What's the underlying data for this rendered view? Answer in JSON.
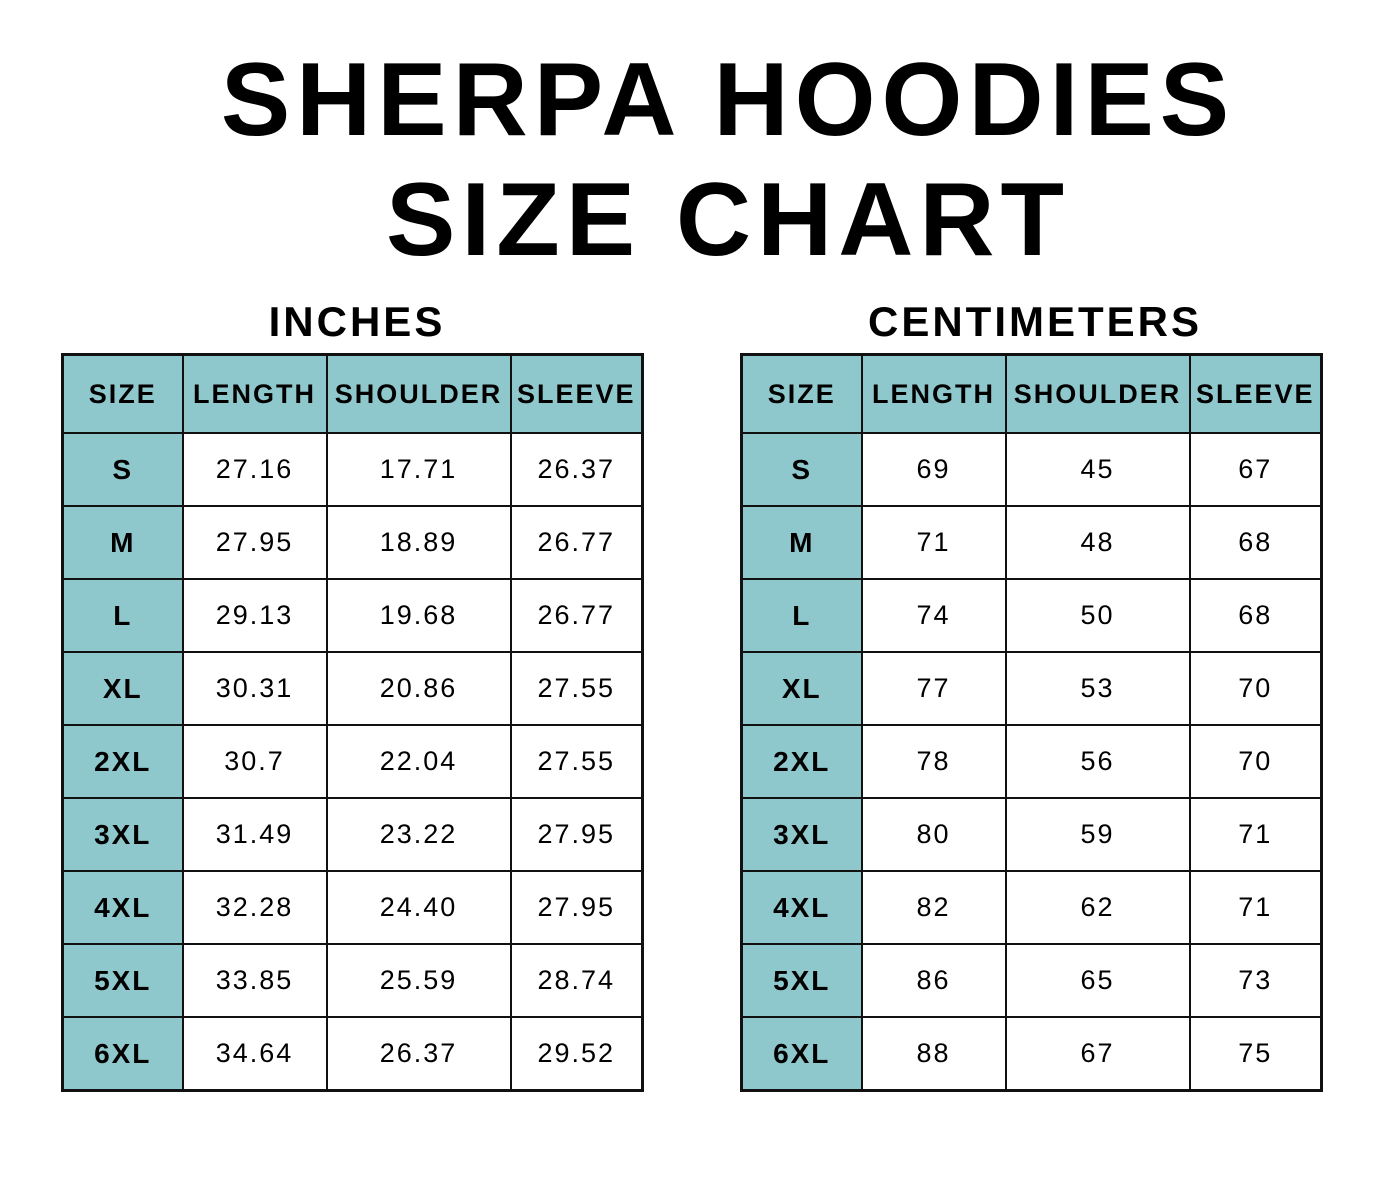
{
  "title_line1": "SHERPA HOODIES",
  "title_line2": "SIZE CHART",
  "accent_color": "#8fc8cc",
  "inches": {
    "label": "INCHES",
    "headers": [
      "SIZE",
      "LENGTH",
      "SHOULDER",
      "SLEEVE"
    ],
    "rows": [
      [
        "S",
        "27.16",
        "17.71",
        "26.37"
      ],
      [
        "M",
        "27.95",
        "18.89",
        "26.77"
      ],
      [
        "L",
        "29.13",
        "19.68",
        "26.77"
      ],
      [
        "XL",
        "30.31",
        "20.86",
        "27.55"
      ],
      [
        "2XL",
        "30.7",
        "22.04",
        "27.55"
      ],
      [
        "3XL",
        "31.49",
        "23.22",
        "27.95"
      ],
      [
        "4XL",
        "32.28",
        "24.40",
        "27.95"
      ],
      [
        "5XL",
        "33.85",
        "25.59",
        "28.74"
      ],
      [
        "6XL",
        "34.64",
        "26.37",
        "29.52"
      ]
    ]
  },
  "centimeters": {
    "label": "CENTIMETERS",
    "headers": [
      "SIZE",
      "LENGTH",
      "SHOULDER",
      "SLEEVE"
    ],
    "rows": [
      [
        "S",
        "69",
        "45",
        "67"
      ],
      [
        "M",
        "71",
        "48",
        "68"
      ],
      [
        "L",
        "74",
        "50",
        "68"
      ],
      [
        "XL",
        "77",
        "53",
        "70"
      ],
      [
        "2XL",
        "78",
        "56",
        "70"
      ],
      [
        "3XL",
        "80",
        "59",
        "71"
      ],
      [
        "4XL",
        "82",
        "62",
        "71"
      ],
      [
        "5XL",
        "86",
        "65",
        "73"
      ],
      [
        "6XL",
        "88",
        "67",
        "75"
      ]
    ]
  }
}
